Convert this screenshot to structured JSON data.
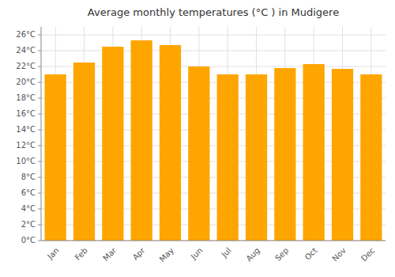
{
  "chart_data": {
    "type": "bar",
    "title": "Average monthly temperatures (°C ) in Mudigere",
    "categories": [
      "Jan",
      "Feb",
      "Mar",
      "Apr",
      "May",
      "Jun",
      "Jul",
      "Aug",
      "Sep",
      "Oct",
      "Nov",
      "Dec"
    ],
    "values": [
      21,
      22.5,
      24.5,
      25.3,
      24.7,
      22,
      21,
      21,
      21.8,
      22.3,
      21.7,
      21
    ],
    "color": "#FFA500",
    "ylim": [
      0,
      27
    ],
    "yticks": [
      {
        "value": 0,
        "label": "0°C"
      },
      {
        "value": 2,
        "label": "2°C"
      },
      {
        "value": 4,
        "label": "4°C"
      },
      {
        "value": 6,
        "label": "6°C"
      },
      {
        "value": 8,
        "label": "8°C"
      },
      {
        "value": 10,
        "label": "10°C"
      },
      {
        "value": 12,
        "label": "12°C"
      },
      {
        "value": 14,
        "label": "14°C"
      },
      {
        "value": 16,
        "label": "16°C"
      },
      {
        "value": 18,
        "label": "18°C"
      },
      {
        "value": 20,
        "label": "20°C"
      },
      {
        "value": 22,
        "label": "22°C"
      },
      {
        "value": 24,
        "label": "24°C"
      },
      {
        "value": 26,
        "label": "26°C"
      }
    ],
    "grid": true
  }
}
